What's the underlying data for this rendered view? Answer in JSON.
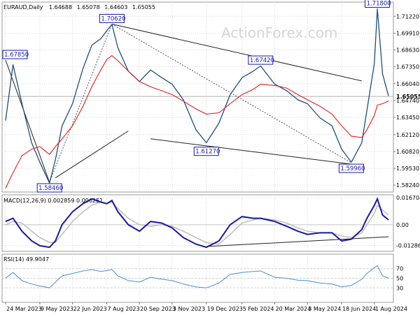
{
  "chart_data": {
    "type": "line",
    "symbol": "EURAUD,Daily",
    "ohlc": {
      "open": "1.64688",
      "high": "1.65078",
      "low": "1.64603",
      "close": "1.65055"
    },
    "watermark": "ActionForex.com",
    "current_price_label": "1.65055",
    "current_price": 1.65055,
    "ma_price": 1.6474,
    "price_axis": {
      "ylim": [
        1.5771,
        1.7231
      ],
      "ticks": [
        "1.71220",
        "1.69910",
        "1.68630",
        "1.67350",
        "1.66040",
        "1.64740",
        "1.63450",
        "1.62120",
        "1.60820",
        "1.59530",
        "1.58240"
      ]
    },
    "x_axis": {
      "ticks": [
        "24 Mar 2023",
        "9 May 2023",
        "22 Jun 2023",
        "7 Aug 2023",
        "20 Sep 2023",
        "3 Nov 2023",
        "19 Dec 2023",
        "5 Feb 2024",
        "20 Mar 2024",
        "3 May 2024",
        "18 Jun 2024",
        "1 Aug 2024"
      ]
    },
    "price_series": {
      "x": [
        "24 Mar 2023",
        "3 Apr 2023",
        "15 Apr 2023",
        "28 Apr 2023",
        "9 May 2023",
        "22 May 2023",
        "30 May 2023",
        "8 Jun 2023",
        "22 Jun 2023",
        "6 Jul 2023",
        "18 Jul 2023",
        "30 Jul 2023",
        "7 Aug 2023",
        "14 Aug 2023",
        "22 Aug 2023",
        "5 Sep 2023",
        "20 Sep 2023",
        "5 Oct 2023",
        "20 Oct 2023",
        "3 Nov 2023",
        "18 Nov 2023",
        "5 Dec 2023",
        "19 Dec 2023",
        "5 Jan 2024",
        "20 Jan 2024",
        "5 Feb 2024",
        "20 Feb 2024",
        "1 Mar 2024",
        "20 Mar 2024",
        "5 Apr 2024",
        "20 Apr 2024",
        "3 May 2024",
        "20 May 2024",
        "5 Jun 2024",
        "18 Jun 2024",
        "1 Jul 2024",
        "15 Jul 2024",
        "22 Jul 2024",
        "1 Aug 2024",
        "5 Aug 2024",
        "12 Aug 2024",
        "20 Aug 2024"
      ],
      "values": [
        1.632,
        1.675,
        1.645,
        1.615,
        1.6,
        1.584,
        1.602,
        1.628,
        1.645,
        1.672,
        1.69,
        1.695,
        1.701,
        1.706,
        1.688,
        1.67,
        1.662,
        1.671,
        1.665,
        1.66,
        1.648,
        1.625,
        1.615,
        1.63,
        1.652,
        1.665,
        1.67,
        1.674,
        1.66,
        1.655,
        1.648,
        1.645,
        1.634,
        1.628,
        1.61,
        1.6,
        1.615,
        1.64,
        1.676,
        1.718,
        1.668,
        1.651
      ]
    },
    "ma_series": {
      "values": [
        1.58,
        1.592,
        1.605,
        1.61,
        1.612,
        1.606,
        1.612,
        1.618,
        1.628,
        1.643,
        1.658,
        1.671,
        1.679,
        1.682,
        1.678,
        1.67,
        1.662,
        1.658,
        1.655,
        1.652,
        1.647,
        1.641,
        1.637,
        1.638,
        1.645,
        1.652,
        1.656,
        1.66,
        1.659,
        1.657,
        1.652,
        1.648,
        1.643,
        1.637,
        1.628,
        1.62,
        1.619,
        1.625,
        1.636,
        1.644,
        1.645,
        1.647
      ]
    },
    "annotations": [
      {
        "label": "1.67850",
        "date": "24 Mar 2023",
        "value": 1.6785
      },
      {
        "label": "1.58460",
        "date": "22 May 2023",
        "value": 1.5846
      },
      {
        "label": "1.70620",
        "date": "14 Aug 2023",
        "value": 1.7062
      },
      {
        "label": "1.61270",
        "date": "19 Dec 2023",
        "value": 1.6127
      },
      {
        "label": "1.67420",
        "date": "1 Mar 2024",
        "value": 1.6742
      },
      {
        "label": "1.59960",
        "date": "1 Jul 2024",
        "value": 1.5996
      },
      {
        "label": "1.71800",
        "date": "5 Aug 2024",
        "value": 1.718
      }
    ],
    "trendlines": [
      {
        "from": [
          "30 May 2023",
          1.588
        ],
        "to": [
          "5 Sep 2023",
          1.624
        ],
        "style": "solid"
      },
      {
        "from": [
          "24 Mar 2023",
          1.6785
        ],
        "to": [
          "22 May 2023",
          1.5846
        ],
        "style": "solid"
      },
      {
        "from": [
          "14 Aug 2023",
          1.7062
        ],
        "to": [
          "15 Jul 2024",
          1.6625
        ],
        "style": "solid"
      },
      {
        "from": [
          "5 Oct 2023",
          1.618
        ],
        "to": [
          "15 Jul 2024",
          1.5975
        ],
        "style": "solid"
      },
      {
        "from": [
          "22 May 2023",
          1.5846
        ],
        "to": [
          "14 Aug 2023",
          1.7062
        ],
        "style": "dashed"
      },
      {
        "from": [
          "14 Aug 2023",
          1.7062
        ],
        "to": [
          "1 Jul 2024",
          1.5996
        ],
        "style": "dashed"
      }
    ],
    "macd": {
      "label": "MACD(12,26,9) 0.002859 0.006251",
      "ylim": [
        -0.0165,
        0.0185
      ],
      "ticks": [
        "0.016704",
        "0.00",
        "-0.012869"
      ],
      "macd_values": [
        0.002,
        0.004,
        -0.004,
        -0.01,
        -0.013,
        -0.014,
        -0.01,
        0.0,
        0.008,
        0.013,
        0.016,
        0.014,
        0.013,
        0.015,
        0.008,
        0.0,
        -0.004,
        0.002,
        0.001,
        -0.002,
        -0.008,
        -0.012,
        -0.014,
        -0.01,
        0.0,
        0.005,
        0.004,
        0.004,
        0.002,
        -0.001,
        -0.004,
        -0.006,
        -0.005,
        -0.005,
        -0.01,
        -0.009,
        -0.003,
        0.004,
        0.012,
        0.016,
        0.006,
        0.003
      ],
      "signal_values": [
        0.0,
        0.002,
        0.001,
        -0.004,
        -0.008,
        -0.011,
        -0.011,
        -0.006,
        0.002,
        0.008,
        0.012,
        0.014,
        0.013,
        0.014,
        0.01,
        0.004,
        0.0,
        -0.001,
        0.0,
        -0.001,
        -0.004,
        -0.008,
        -0.011,
        -0.012,
        -0.006,
        0.001,
        0.003,
        0.004,
        0.003,
        0.001,
        -0.002,
        -0.004,
        -0.005,
        -0.005,
        -0.007,
        -0.008,
        -0.005,
        0.0,
        0.007,
        0.012,
        0.009,
        0.006
      ],
      "trendline": {
        "from": [
          "19 Dec 2023",
          -0.0135
        ],
        "to": [
          "20 Aug 2024",
          -0.0075
        ]
      }
    },
    "rsi": {
      "label": "RSI(14) 49.9047",
      "ylim": [
        0,
        100
      ],
      "ticks": [
        "70",
        "50",
        "30"
      ],
      "values": [
        50,
        62,
        45,
        38,
        34,
        30,
        42,
        55,
        60,
        65,
        68,
        64,
        66,
        68,
        55,
        45,
        42,
        52,
        48,
        45,
        38,
        32,
        30,
        40,
        58,
        62,
        64,
        65,
        52,
        50,
        46,
        45,
        40,
        38,
        32,
        35,
        48,
        60,
        72,
        76,
        55,
        50
      ]
    }
  }
}
